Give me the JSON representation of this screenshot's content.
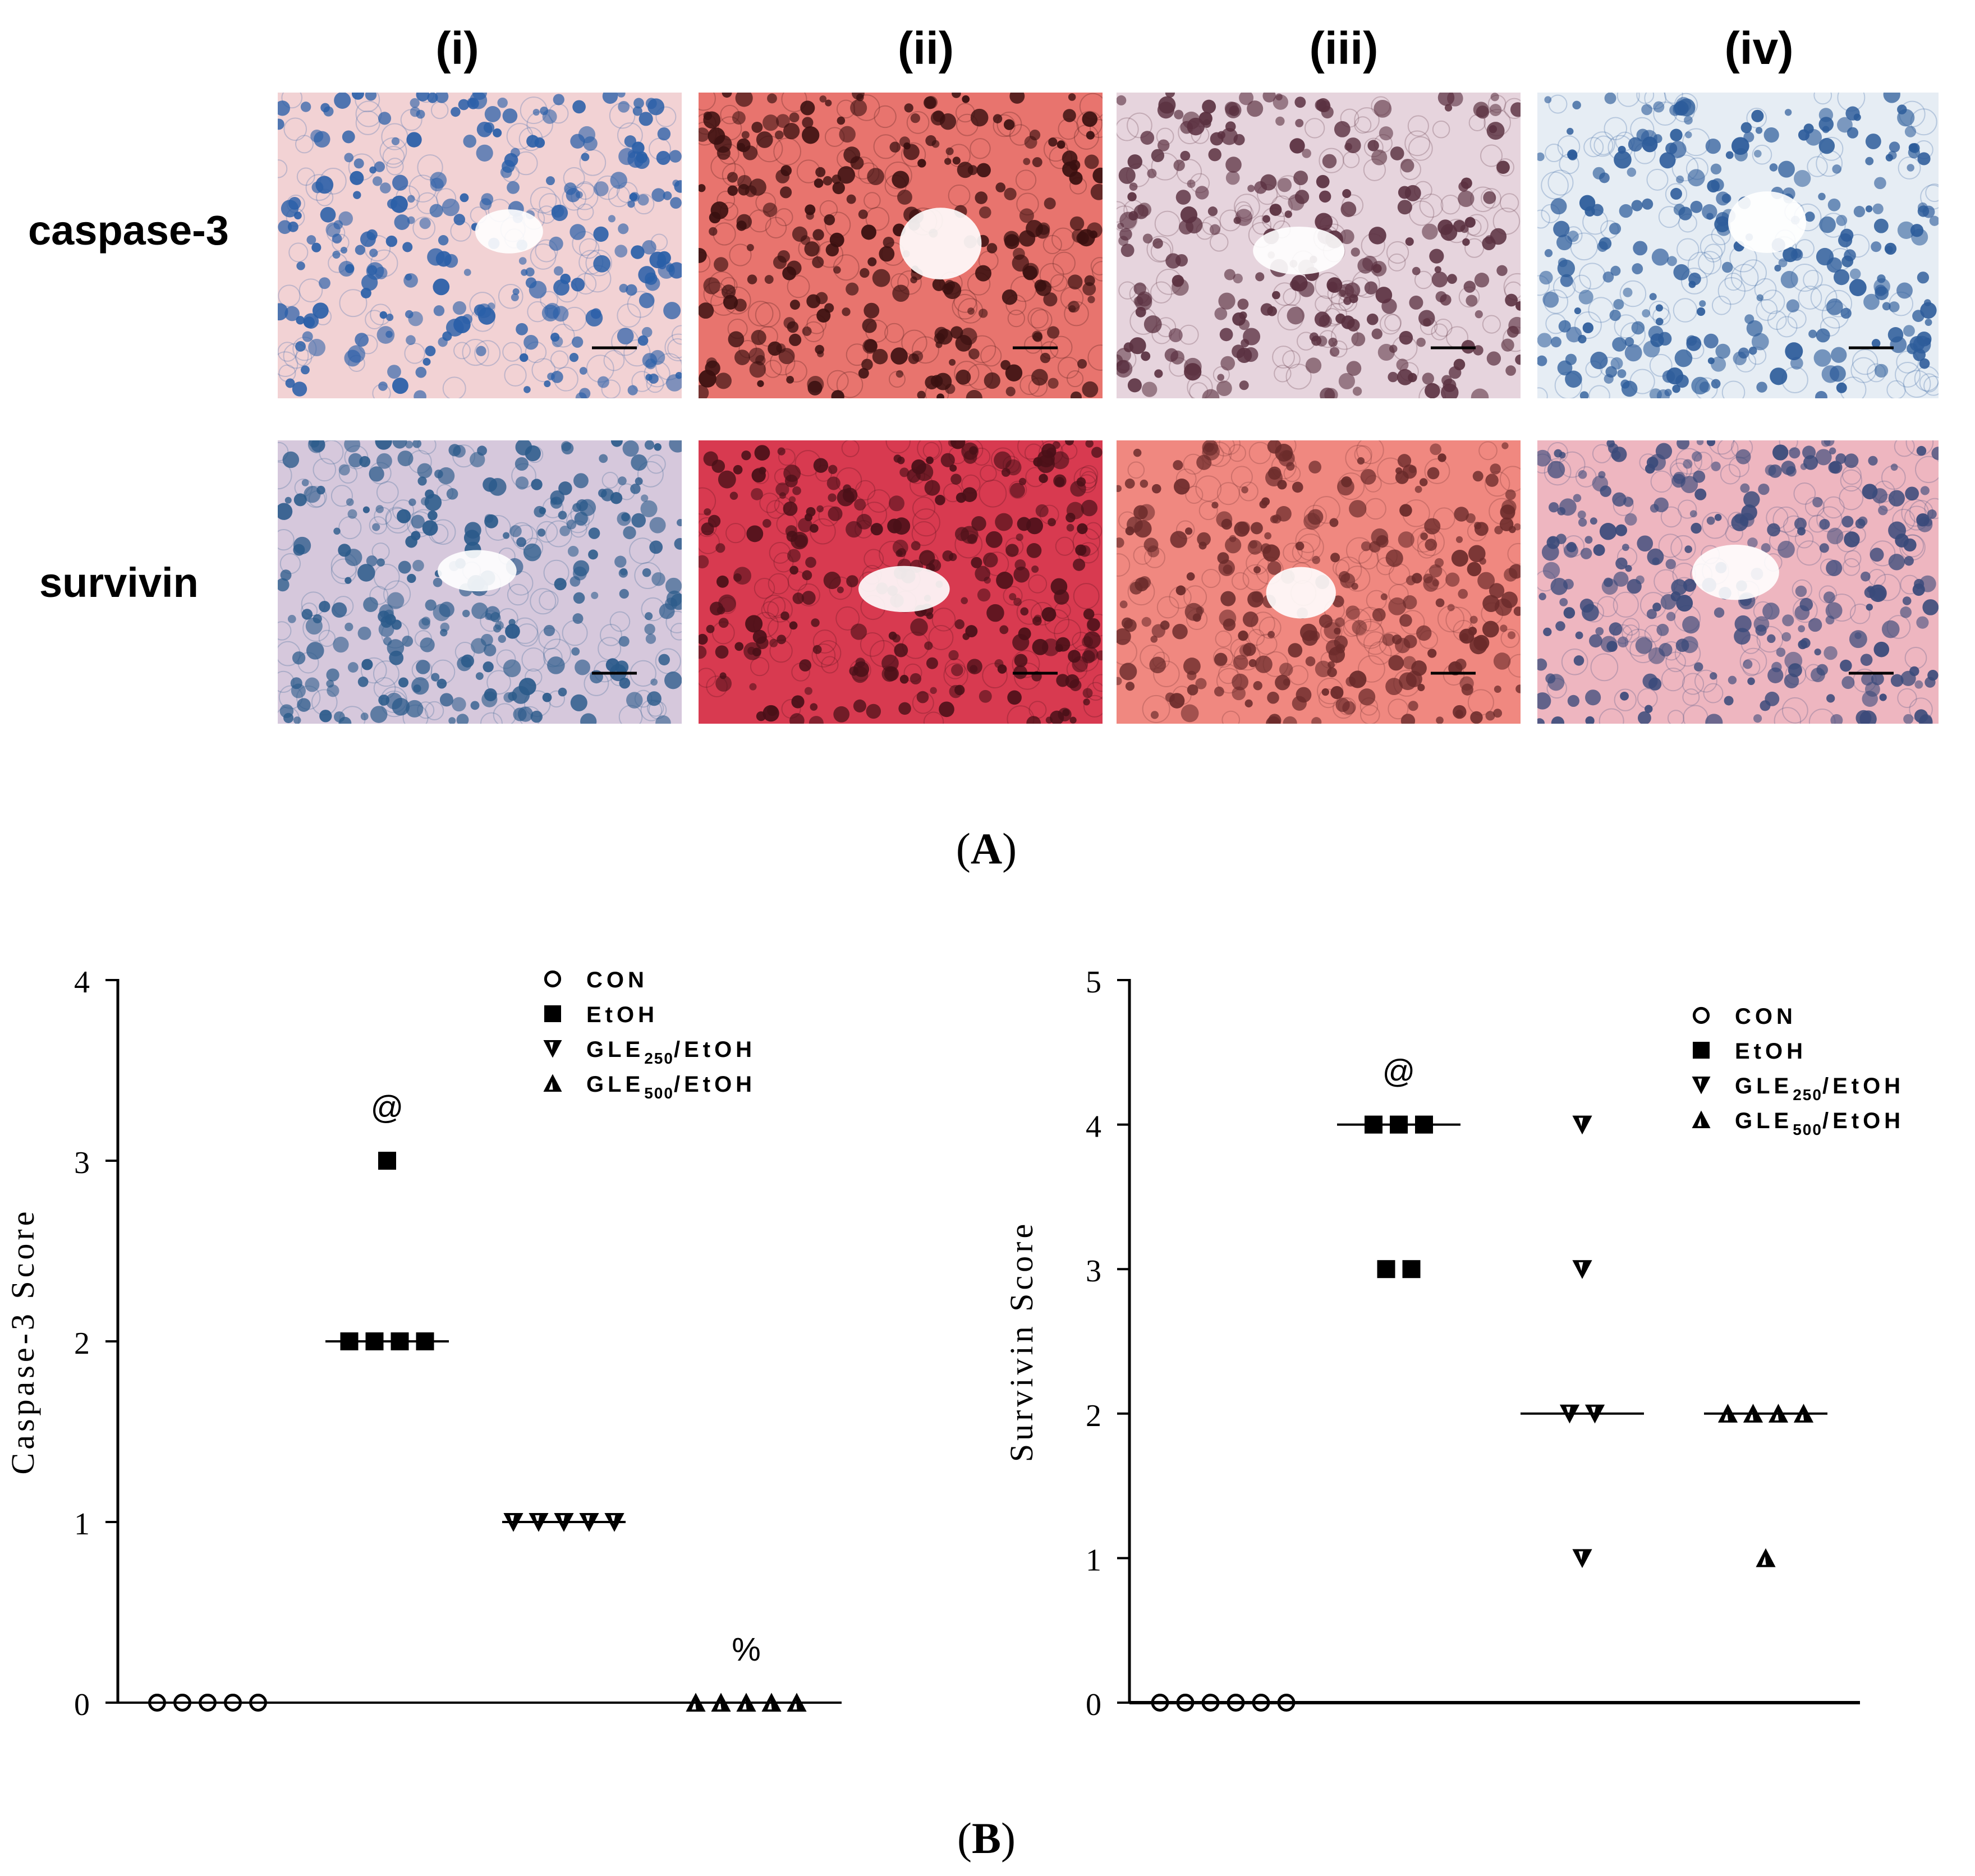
{
  "panel_a": {
    "label": "A",
    "columns": [
      "(i)",
      "(ii)",
      "(iii)",
      "(iv)"
    ],
    "rows": [
      "caspase-3",
      "survivin"
    ],
    "tiles": [
      {
        "row": "caspase-3",
        "col": "(i)",
        "stain": "#f2d2d4",
        "dot": "#2a5fa8"
      },
      {
        "row": "caspase-3",
        "col": "(ii)",
        "stain": "#e8746e",
        "dot": "#3a1010"
      },
      {
        "row": "caspase-3",
        "col": "(iii)",
        "stain": "#e6d4dd",
        "dot": "#5a3040"
      },
      {
        "row": "caspase-3",
        "col": "(iv)",
        "stain": "#e6edf4",
        "dot": "#2d5c9a"
      },
      {
        "row": "survivin",
        "col": "(i)",
        "stain": "#d6c8dc",
        "dot": "#2a5a8a"
      },
      {
        "row": "survivin",
        "col": "(ii)",
        "stain": "#d83a50",
        "dot": "#4a1018"
      },
      {
        "row": "survivin",
        "col": "(iii)",
        "stain": "#f08880",
        "dot": "#6a2a2a"
      },
      {
        "row": "survivin",
        "col": "(iv)",
        "stain": "#eeb6c0",
        "dot": "#3a4a7a"
      }
    ]
  },
  "panel_b": {
    "label": "B"
  },
  "chart_data": [
    {
      "type": "scatter",
      "ylabel": "Caspase-3 Score",
      "ylim": [
        0,
        4
      ],
      "yticks": [
        0,
        1,
        2,
        3,
        4
      ],
      "legend_position": "top-right",
      "legend": [
        {
          "symbol": "circle",
          "text": "CON"
        },
        {
          "symbol": "square",
          "text": "EtOH"
        },
        {
          "symbol": "tri-down",
          "text": "GLE250/EtOH"
        },
        {
          "symbol": "tri-up",
          "text": "GLE500/EtOH"
        }
      ],
      "groups": [
        {
          "name": "CON",
          "symbol": "circle",
          "values": [
            0,
            0,
            0,
            0,
            0
          ],
          "median": 0
        },
        {
          "name": "EtOH",
          "symbol": "square",
          "values": [
            3,
            2,
            2,
            2,
            2
          ],
          "median": 2,
          "annotation": "@"
        },
        {
          "name": "GLE250/EtOH",
          "symbol": "tri-down",
          "values": [
            1,
            1,
            1,
            1,
            1
          ],
          "median": 1
        },
        {
          "name": "GLE500/EtOH",
          "symbol": "tri-up",
          "values": [
            0,
            0,
            0,
            0,
            0
          ],
          "median": 0,
          "annotation": "%"
        }
      ]
    },
    {
      "type": "scatter",
      "ylabel": "Survivin Score",
      "ylim": [
        0,
        5
      ],
      "yticks": [
        0,
        1,
        2,
        3,
        4,
        5
      ],
      "legend_position": "top-right",
      "legend": [
        {
          "symbol": "circle",
          "text": "CON"
        },
        {
          "symbol": "square",
          "text": "EtOH"
        },
        {
          "symbol": "tri-down",
          "text": "GLE250/EtOH"
        },
        {
          "symbol": "tri-up",
          "text": "GLE500/EtOH"
        }
      ],
      "groups": [
        {
          "name": "CON",
          "symbol": "circle",
          "values": [
            0,
            0,
            0,
            0,
            0,
            0
          ],
          "median": 0
        },
        {
          "name": "EtOH",
          "symbol": "square",
          "values": [
            4,
            4,
            4,
            3,
            3
          ],
          "median": 4,
          "annotation": "@"
        },
        {
          "name": "GLE250/EtOH",
          "symbol": "tri-down",
          "values": [
            4,
            3,
            2,
            2,
            1
          ],
          "median": 2
        },
        {
          "name": "GLE500/EtOH",
          "symbol": "tri-up",
          "values": [
            2,
            2,
            2,
            2,
            1
          ],
          "median": 2
        }
      ]
    }
  ]
}
